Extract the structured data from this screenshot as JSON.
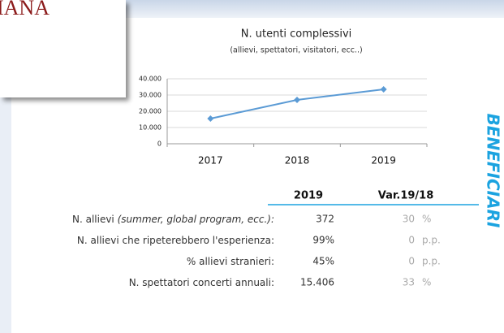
{
  "logo": "IANA",
  "side_label": "BENEFICIARI",
  "chart_data": {
    "type": "line",
    "title": "N. utenti complessivi",
    "subtitle": "(allievi, spettatori, visitatori, ecc..)",
    "categories": [
      "2017",
      "2018",
      "2019"
    ],
    "series": [
      {
        "name": "N. utenti complessivi",
        "color": "#5b9bd5",
        "values": [
          15500,
          27000,
          33500
        ]
      }
    ],
    "ylim": [
      0,
      40000
    ],
    "yticks": [
      0,
      {
        "value": 10000,
        "label": "10.000"
      },
      {
        "value": 20000,
        "label": "20.000"
      },
      {
        "value": 30000,
        "label": "30.000"
      },
      {
        "value": 40000,
        "label": "40.000"
      }
    ],
    "grid": true
  },
  "table": {
    "header": [
      "2019",
      "Var.19/18"
    ],
    "rows": [
      {
        "label": "N. allievi",
        "label_note": "(summer, global program, ecc.):",
        "value": "372",
        "var": "30",
        "unit": "%"
      },
      {
        "label": "N. allievi che ripeterebbero l'esperienza:",
        "value": "99%",
        "var": "0",
        "unit": "p.p."
      },
      {
        "label": "% allievi stranieri:",
        "value": "45%",
        "var": "0",
        "unit": "p.p."
      },
      {
        "label": "N. spettatori concerti annuali:",
        "value": "15.406",
        "var": "33",
        "unit": "%"
      }
    ]
  }
}
